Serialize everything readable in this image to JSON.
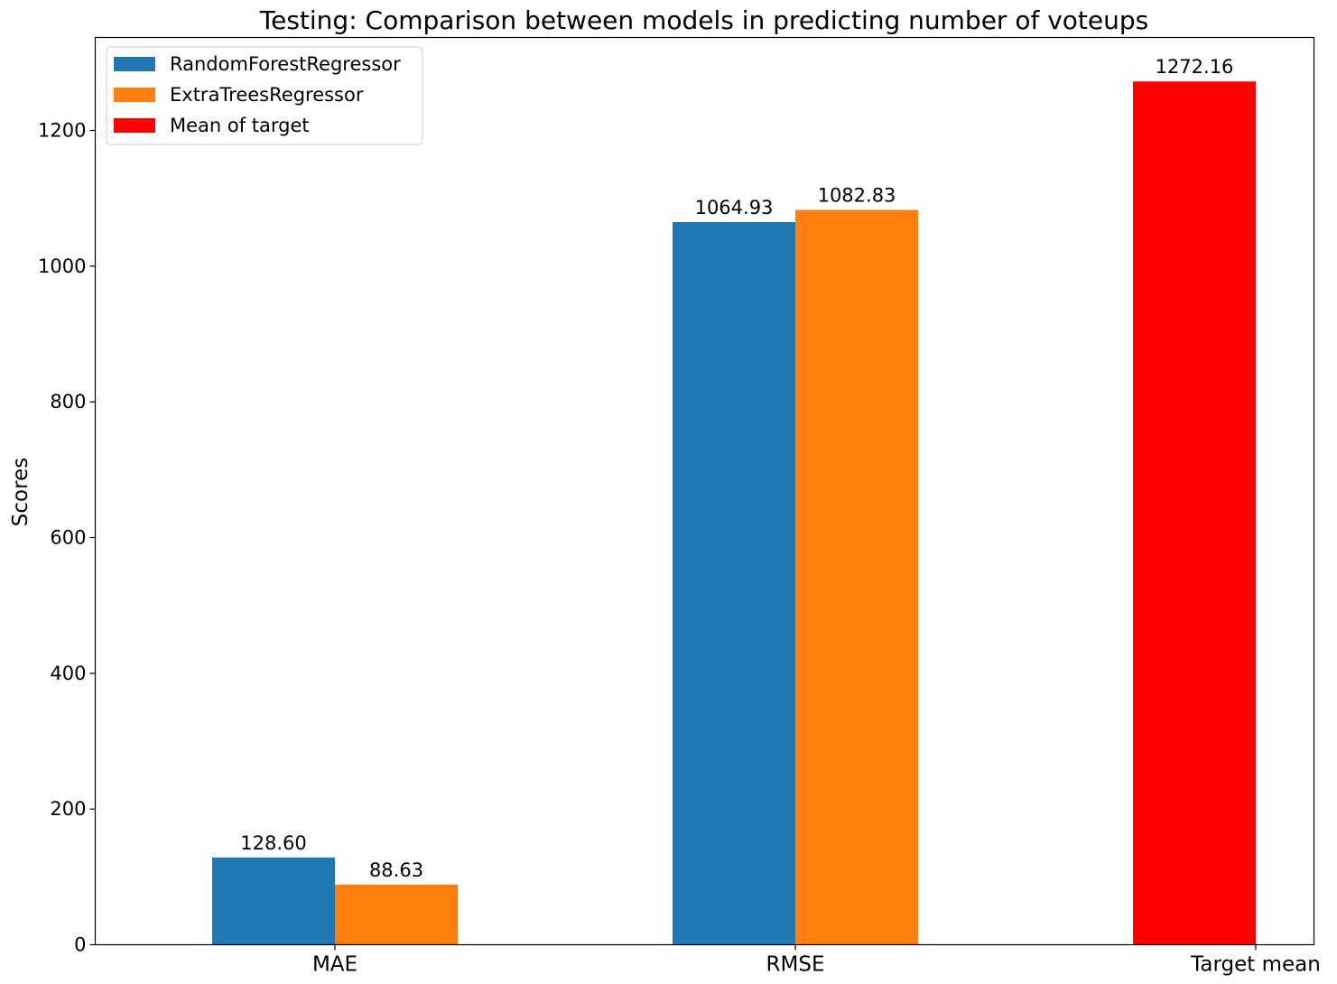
{
  "chart_data": {
    "type": "bar",
    "title": "Testing: Comparison between models in predicting number of voteups",
    "xlabel": "",
    "ylabel": "Scores",
    "categories": [
      "MAE",
      "RMSE",
      "Target mean"
    ],
    "ylim": [
      0,
      1337
    ],
    "yticks": [
      0,
      200,
      400,
      600,
      800,
      1000,
      1200
    ],
    "series": [
      {
        "name": "RandomForestRegressor",
        "color": "#1f77b4",
        "values": [
          128.6,
          1064.93,
          null
        ],
        "labels": [
          "128.60",
          "1064.93",
          null
        ]
      },
      {
        "name": "ExtraTreesRegressor",
        "color": "#ff7f0e",
        "values": [
          88.63,
          1082.83,
          null
        ],
        "labels": [
          "88.63",
          "1082.83",
          null
        ]
      },
      {
        "name": "Mean of target",
        "color": "#ff0000",
        "values": [
          null,
          null,
          1272.16
        ],
        "labels": [
          null,
          null,
          "1272.16"
        ]
      }
    ],
    "legend": {
      "position": "top-left"
    },
    "grid": false
  }
}
